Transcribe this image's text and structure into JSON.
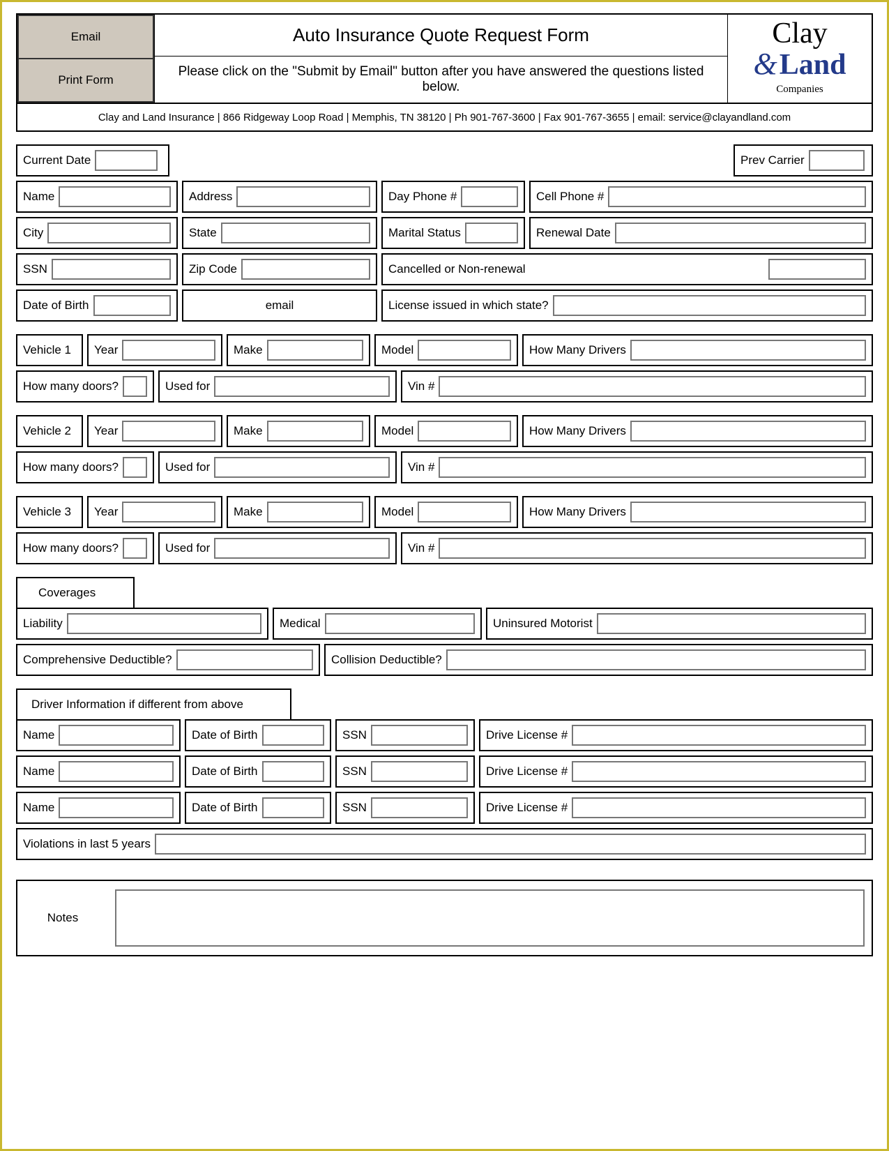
{
  "header": {
    "email_btn": "Email",
    "print_btn": "Print Form",
    "title": "Auto Insurance Quote Request Form",
    "subtitle": "Please click on the \"Submit by Email\" button after you have answered the questions listed below.",
    "logo_line1": "Clay",
    "logo_line2": "Land",
    "logo_line3": "Companies",
    "address": "Clay and Land Insurance | 866 Ridgeway Loop Road | Memphis, TN 38120 | Ph 901-767-3600 | Fax 901-767-3655 | email: service@clayandland.com"
  },
  "personal": {
    "current_date": "Current Date",
    "prev_carrier": "Prev Carrier",
    "name": "Name",
    "address": "Address",
    "day_phone": "Day Phone #",
    "cell_phone": "Cell Phone #",
    "city": "City",
    "state": "State",
    "marital": "Marital Status",
    "renewal": "Renewal Date",
    "ssn": "SSN",
    "zip": "Zip Code",
    "cancelled": "Cancelled or Non-renewal",
    "dob": "Date of Birth",
    "email": "email",
    "license_state": "License issued in which state?"
  },
  "veh_labels": {
    "year": "Year",
    "make": "Make",
    "model": "Model",
    "drivers": "How Many Drivers",
    "doors": "How many doors?",
    "used": "Used for",
    "vin": "Vin #"
  },
  "vehicles": [
    "Vehicle 1",
    "Vehicle 2",
    "Vehicle 3"
  ],
  "coverages": {
    "header": "Coverages",
    "liability": "Liability",
    "medical": "Medical",
    "uninsured": "Uninsured Motorist",
    "comp": "Comprehensive Deductible?",
    "coll": "Collision Deductible?"
  },
  "drivers": {
    "header": "Driver Information if different from above",
    "name": "Name",
    "dob": "Date of Birth",
    "ssn": "SSN",
    "license": "Drive License #",
    "violations": "Violations in last 5 years"
  },
  "notes": "Notes",
  "colors": {
    "page_border": "#c9b830",
    "button_bg": "#cfc8bd",
    "logo_accent": "#233a8a",
    "input_border": "#777777"
  }
}
